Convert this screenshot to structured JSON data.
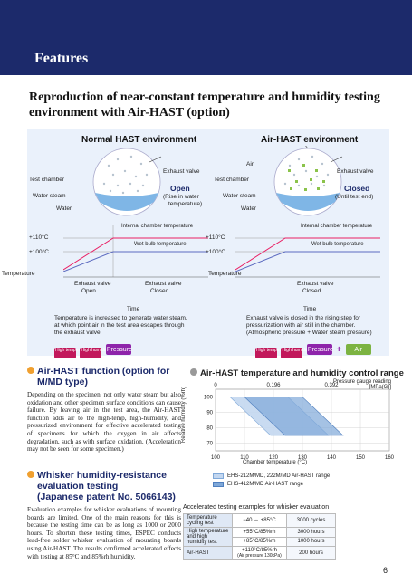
{
  "header": {
    "title": "Features"
  },
  "subtitle": "Reproduction of near-constant temperature and humidity testing environment with Air-HAST (option)",
  "diagram": {
    "normal": {
      "title": "Normal HAST environment",
      "test_chamber": "Test chamber",
      "water_steam": "Water steam",
      "water": "Water",
      "exhaust_valve": "Exhaust valve",
      "valve_state": "Open",
      "note_line1": "(Rise in water",
      "note_line2": "temperature)",
      "internal_temp": "Internal chamber temperature",
      "wet_bulb": "Wet bulb temperature",
      "t110": "+110°C",
      "t100": "+100°C",
      "temperature": "Temperature",
      "seg1_line1": "Exhaust valve",
      "seg1_line2": "Open",
      "seg2_line1": "Exhaust valve",
      "seg2_line2": "Closed",
      "time": "Time",
      "desc_line1": "Temperature is increased to generate water steam,",
      "desc_line2": "at which point air in the test area escapes through",
      "desc_line3": "the exhaust valve.",
      "tag_high_temp": "High temperature",
      "tag_high_hum": "High humidity",
      "tag_pressure": "Pressure"
    },
    "air": {
      "title": "Air-HAST environment",
      "air": "Air",
      "test_chamber": "Test chamber",
      "water_steam": "Water steam",
      "water": "Water",
      "exhaust_valve": "Exhaust valve",
      "valve_state": "Closed",
      "note": "(Until test end)",
      "internal_temp": "Internal chamber temperature",
      "wet_bulb": "Wet bulb temperature",
      "t110": "+110°C",
      "t100": "+100°C",
      "temperature": "Temperature",
      "seg_line1": "Exhaust valve",
      "seg_line2": "Closed",
      "time": "Time",
      "desc_line1": "Exhaust valve is closed in the rising step for",
      "desc_line2": "pressurization with air still in the chamber.",
      "desc_line3": "(Atmospheric pressure + Water steam pressure)",
      "tag_high_temp": "High temperature",
      "tag_high_hum": "High humidity",
      "tag_pressure": "Pressure",
      "plus": "+",
      "tag_air": "Air"
    }
  },
  "section1": {
    "heading_line1": "Air-HAST function (option for",
    "heading_line2": "M/MD type)",
    "body": "Depending on the specimen, not only water steam but also oxidation and other specimen surface conditions can cause failure. By leaving air in the test area, the Air-HAST function adds air to the high-temp, high-humidity, and pressurized environment for effective accelerated testing of specimens for which the oxygen in air affects degradation, such as with surface oxidation. (Acceleration may not be seen for some specimen.)"
  },
  "section2": {
    "heading_line1": "Whisker humidity-resistance",
    "heading_line2": "evaluation testing",
    "heading_line3": "(Japanese patent No. 5066143)",
    "body": "Evaluation examples for whisker evaluations of mounting boards are limited. One of the main reasons for this is because the testing time can be as long as 1000 or 2000 hours. To shorten these testing times, ESPEC conducts lead-free solder whisker evaluation of mounting boards using Air-HAST. The results confirmed accelerated effects with testing at 85°C and 85%rh humidity."
  },
  "chart_data": {
    "type": "area",
    "title": "Air-HAST temperature and humidity control range",
    "xlabel": "Chamber temperature (°C)",
    "ylabel": "Relative humidity (%rh)",
    "top_axis_label_line1": "Pressure gauge reading",
    "top_axis_label_line2": "[MPa(G)]",
    "x_ticks": [
      100,
      110,
      120,
      130,
      140,
      150,
      160
    ],
    "y_ticks": [
      70,
      80,
      90,
      100
    ],
    "top_ticks": [
      "0",
      "0.196",
      "0.392"
    ],
    "xlim": [
      100,
      160
    ],
    "ylim": [
      65,
      105
    ],
    "series": [
      {
        "name": "EHS-212M/MD, 222M/MD Air-HAST range",
        "polygon": [
          [
            105,
            100
          ],
          [
            125,
            100
          ],
          [
            139,
            75
          ],
          [
            119,
            75
          ]
        ]
      },
      {
        "name": "EHS-412M/MD Air-HAST range",
        "polygon": [
          [
            110,
            100
          ],
          [
            130,
            100
          ],
          [
            144,
            75
          ],
          [
            124,
            75
          ]
        ]
      }
    ]
  },
  "examples": {
    "title": "Accelerated testing examples for whisker evaluation",
    "rows": [
      {
        "label": "Temperature cycling test",
        "condition": "−40 ⇔ +85°C",
        "result": "3000 cycles"
      },
      {
        "label": "High temperature and high humidity test",
        "condition": "+55°C/85%rh",
        "result": "3000 hours"
      },
      {
        "label": "",
        "condition": "+85°C/85%rh",
        "result": "1000 hours"
      },
      {
        "label": "Air-HAST",
        "condition": "+110°C/85%rh",
        "condition_note": "(Air pressure 130kPa)",
        "result": "200 hours"
      }
    ]
  },
  "page_number": "6",
  "colors": {
    "header_bg": "#1c2a6b",
    "accent_orange": "#f0a030",
    "tag_magenta": "#c2185b",
    "tag_purple": "#8e24aa",
    "tag_green": "#7cb342",
    "range1": "#c3d7f0",
    "range2": "#7fa8d8"
  }
}
